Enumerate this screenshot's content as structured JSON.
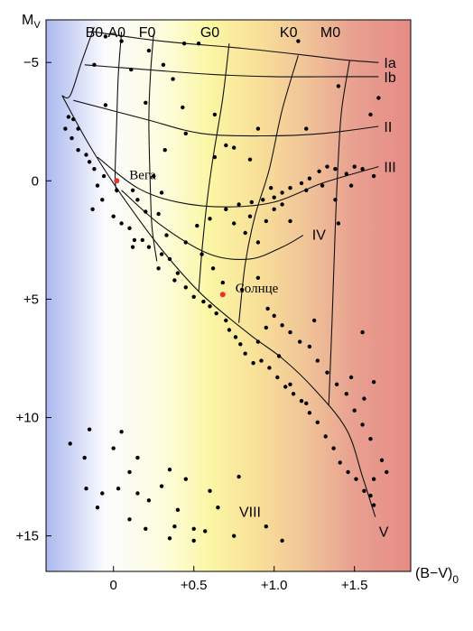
{
  "chart_data": {
    "type": "scatter",
    "ylabel": "M",
    "ylabel_subscript": "V",
    "xlabel": "(B−V)",
    "xlabel_subscript": "0",
    "xlim": [
      -0.42,
      1.85
    ],
    "ylim": [
      -6.8,
      16.5
    ],
    "y_inverted": true,
    "x_ticks": [
      {
        "value": 0,
        "label": "0"
      },
      {
        "value": 0.5,
        "label": "+0.5"
      },
      {
        "value": 1.0,
        "label": "+1.0"
      },
      {
        "value": 1.5,
        "label": "+1.5"
      }
    ],
    "y_ticks": [
      {
        "value": -5,
        "label": "−5"
      },
      {
        "value": 0,
        "label": "0"
      },
      {
        "value": 5,
        "label": "+5"
      },
      {
        "value": 10,
        "label": "+10"
      },
      {
        "value": 15,
        "label": "+15"
      }
    ],
    "background_gradient": [
      {
        "x": -0.42,
        "color": "#aab8ee"
      },
      {
        "x": -0.05,
        "color": "#fcfcff"
      },
      {
        "x": 0.3,
        "color": "#fdfde0"
      },
      {
        "x": 0.6,
        "color": "#fbf6a4"
      },
      {
        "x": 0.9,
        "color": "#f8e098"
      },
      {
        "x": 1.2,
        "color": "#f0c498"
      },
      {
        "x": 1.5,
        "color": "#e8a090"
      },
      {
        "x": 1.85,
        "color": "#e68b86"
      }
    ],
    "spectral_classes": [
      {
        "label": "B0",
        "x": -0.12
      },
      {
        "label": "A0",
        "x": 0.02
      },
      {
        "label": "F0",
        "x": 0.21
      },
      {
        "label": "G0",
        "x": 0.6
      },
      {
        "label": "K0",
        "x": 1.09
      },
      {
        "label": "M0",
        "x": 1.35
      }
    ],
    "luminosity_classes": [
      {
        "label": "Ia",
        "points": [
          [
            -0.13,
            -6.3
          ],
          [
            0.3,
            -5.9
          ],
          [
            0.8,
            -5.6
          ],
          [
            1.2,
            -5.3
          ],
          [
            1.45,
            -5.1
          ],
          [
            1.65,
            -5.0
          ]
        ]
      },
      {
        "label": "Ib",
        "points": [
          [
            -0.18,
            -4.9
          ],
          [
            0.2,
            -4.7
          ],
          [
            0.6,
            -4.5
          ],
          [
            1.0,
            -4.4
          ],
          [
            1.4,
            -4.4
          ],
          [
            1.65,
            -4.4
          ]
        ]
      },
      {
        "label": "II",
        "points": [
          [
            -0.25,
            -3.4
          ],
          [
            0.2,
            -2.6
          ],
          [
            0.55,
            -2.0
          ],
          [
            0.95,
            -1.9
          ],
          [
            1.3,
            -2.0
          ],
          [
            1.65,
            -2.3
          ]
        ]
      },
      {
        "label": "III",
        "points": [
          [
            -0.1,
            -1.0
          ],
          [
            0.15,
            0.3
          ],
          [
            0.4,
            0.9
          ],
          [
            0.7,
            1.1
          ],
          [
            1.0,
            0.9
          ],
          [
            1.3,
            0.1
          ],
          [
            1.65,
            -0.6
          ]
        ]
      },
      {
        "label": "IV",
        "points": [
          [
            0.05,
            0.4
          ],
          [
            0.3,
            1.9
          ],
          [
            0.6,
            3.1
          ],
          [
            0.85,
            3.3
          ],
          [
            1.05,
            2.8
          ],
          [
            1.18,
            2.3
          ]
        ]
      },
      {
        "label": "V",
        "points": [
          [
            -0.32,
            -3.6
          ],
          [
            -0.15,
            -1.5
          ],
          [
            0.05,
            0.6
          ],
          [
            0.3,
            2.9
          ],
          [
            0.55,
            4.8
          ],
          [
            0.85,
            6.5
          ],
          [
            1.05,
            7.5
          ],
          [
            1.25,
            8.8
          ],
          [
            1.45,
            10.5
          ],
          [
            1.55,
            12.5
          ],
          [
            1.63,
            14.2
          ]
        ]
      }
    ],
    "constant_class_lines": [
      {
        "class": "B0",
        "points": [
          [
            -0.12,
            -6.5
          ],
          [
            -0.2,
            -5.0
          ],
          [
            -0.27,
            -3.6
          ],
          [
            -0.32,
            -3.6
          ]
        ]
      },
      {
        "class": "A0",
        "points": [
          [
            0.05,
            -6.3
          ],
          [
            0.03,
            -4.5
          ],
          [
            0.02,
            -2.5
          ],
          [
            0.01,
            -0.2
          ],
          [
            0.02,
            0.5
          ]
        ]
      },
      {
        "class": "F0",
        "points": [
          [
            0.25,
            -6.2
          ],
          [
            0.23,
            -4.5
          ],
          [
            0.22,
            -2.5
          ],
          [
            0.23,
            0.5
          ],
          [
            0.24,
            2.0
          ],
          [
            0.27,
            3.4
          ]
        ]
      },
      {
        "class": "G0",
        "points": [
          [
            0.72,
            -5.8
          ],
          [
            0.68,
            -3.5
          ],
          [
            0.62,
            -1.0
          ],
          [
            0.58,
            1.0
          ],
          [
            0.55,
            3.0
          ],
          [
            0.53,
            4.7
          ]
        ]
      },
      {
        "class": "K0",
        "points": [
          [
            1.15,
            -5.3
          ],
          [
            1.05,
            -3.0
          ],
          [
            0.97,
            -0.5
          ],
          [
            0.88,
            1.5
          ],
          [
            0.82,
            3.5
          ],
          [
            0.78,
            6.0
          ]
        ]
      },
      {
        "class": "M0",
        "points": [
          [
            1.47,
            -5.1
          ],
          [
            1.42,
            -3.0
          ],
          [
            1.4,
            -1.0
          ],
          [
            1.38,
            2.0
          ],
          [
            1.36,
            6.0
          ],
          [
            1.34,
            9.5
          ]
        ]
      }
    ],
    "highlighted_stars": [
      {
        "name": "Вега",
        "x": 0.02,
        "y": 0.0,
        "color": "#e8322a"
      },
      {
        "name": "Солнце",
        "x": 0.68,
        "y": 4.8,
        "color": "#e8322a"
      }
    ],
    "luminosity_label_VIII": {
      "label": "VIII",
      "x": 0.85,
      "y": 14.2
    },
    "stars": [
      [
        -0.05,
        -6.1
      ],
      [
        0.05,
        -5.9
      ],
      [
        0.22,
        -5.5
      ],
      [
        0.44,
        -5.8
      ],
      [
        0.53,
        -5.8
      ],
      [
        1.15,
        -5.9
      ],
      [
        -0.12,
        -4.9
      ],
      [
        0.11,
        -4.7
      ],
      [
        0.31,
        -4.9
      ],
      [
        0.37,
        -4.3
      ],
      [
        1.4,
        -4.0
      ],
      [
        -0.05,
        -3.2
      ],
      [
        0.2,
        -3.3
      ],
      [
        0.43,
        -3.1
      ],
      [
        0.63,
        -2.8
      ],
      [
        1.65,
        -3.5
      ],
      [
        0.45,
        -2.0
      ],
      [
        0.9,
        -2.2
      ],
      [
        1.2,
        -2.2
      ],
      [
        1.6,
        -2.8
      ],
      [
        0.75,
        -1.4
      ],
      [
        0.32,
        -1.3
      ],
      [
        0.63,
        -1.0
      ],
      [
        0.85,
        -0.9
      ],
      [
        -0.28,
        -2.7
      ],
      [
        -0.3,
        -2.2
      ],
      [
        -0.25,
        -2.6
      ],
      [
        -0.22,
        -2.2
      ],
      [
        -0.26,
        -1.8
      ],
      [
        -0.22,
        -1.3
      ],
      [
        -0.17,
        -1.1
      ],
      [
        -0.15,
        -0.8
      ],
      [
        -0.12,
        -0.5
      ],
      [
        -0.06,
        -0.2
      ],
      [
        -0.1,
        0.2
      ],
      [
        0.02,
        0.4
      ],
      [
        0.12,
        0.4
      ],
      [
        0.15,
        0.8
      ],
      [
        0.2,
        1.3
      ],
      [
        0.28,
        1.4
      ],
      [
        -0.07,
        0.8
      ],
      [
        -0.13,
        1.2
      ],
      [
        0.0,
        1.5
      ],
      [
        0.05,
        1.8
      ],
      [
        0.1,
        2.0
      ],
      [
        0.13,
        2.5
      ],
      [
        0.18,
        2.5
      ],
      [
        0.22,
        2.8
      ],
      [
        0.12,
        2.8
      ],
      [
        0.3,
        3.1
      ],
      [
        0.35,
        3.3
      ],
      [
        0.28,
        3.7
      ],
      [
        0.4,
        3.9
      ],
      [
        0.38,
        4.2
      ],
      [
        0.45,
        4.5
      ],
      [
        0.5,
        4.9
      ],
      [
        0.56,
        5.1
      ],
      [
        0.6,
        5.3
      ],
      [
        0.64,
        5.6
      ],
      [
        0.7,
        5.9
      ],
      [
        0.72,
        6.3
      ],
      [
        0.76,
        6.6
      ],
      [
        0.79,
        6.9
      ],
      [
        0.82,
        7.3
      ],
      [
        0.87,
        7.7
      ],
      [
        0.92,
        7.6
      ],
      [
        0.97,
        7.9
      ],
      [
        1.02,
        8.3
      ],
      [
        1.07,
        8.7
      ],
      [
        1.12,
        9.0
      ],
      [
        1.17,
        9.3
      ],
      [
        1.22,
        9.8
      ],
      [
        1.27,
        10.2
      ],
      [
        1.32,
        10.8
      ],
      [
        1.37,
        11.3
      ],
      [
        1.41,
        11.9
      ],
      [
        1.46,
        12.3
      ],
      [
        1.51,
        12.6
      ],
      [
        1.56,
        13.1
      ],
      [
        1.62,
        13.7
      ],
      [
        1.67,
        11.8
      ],
      [
        1.7,
        12.3
      ],
      [
        1.6,
        10.9
      ],
      [
        1.55,
        10.3
      ],
      [
        1.5,
        9.7
      ],
      [
        1.45,
        9.0
      ],
      [
        1.39,
        8.6
      ],
      [
        1.33,
        8.1
      ],
      [
        1.27,
        7.6
      ],
      [
        1.22,
        7.0
      ],
      [
        1.16,
        6.8
      ],
      [
        1.1,
        6.4
      ],
      [
        1.05,
        6.1
      ],
      [
        1.0,
        5.7
      ],
      [
        0.96,
        5.4
      ],
      [
        1.2,
        9.4
      ],
      [
        1.1,
        8.6
      ],
      [
        1.03,
        7.4
      ],
      [
        0.9,
        6.8
      ],
      [
        0.95,
        6.2
      ],
      [
        1.25,
        5.9
      ],
      [
        1.55,
        6.4
      ],
      [
        1.62,
        8.5
      ],
      [
        1.56,
        9.2
      ],
      [
        1.48,
        8.3
      ],
      [
        0.68,
        4.3
      ],
      [
        0.8,
        4.6
      ],
      [
        0.62,
        3.7
      ],
      [
        0.9,
        4.1
      ],
      [
        0.55,
        3.1
      ],
      [
        0.45,
        2.6
      ],
      [
        0.33,
        2.3
      ],
      [
        0.52,
        1.9
      ],
      [
        0.6,
        1.6
      ],
      [
        0.7,
        1.2
      ],
      [
        0.78,
        1.0
      ],
      [
        0.86,
        0.9
      ],
      [
        0.93,
        0.8
      ],
      [
        1.0,
        0.7
      ],
      [
        1.05,
        0.5
      ],
      [
        1.1,
        0.3
      ],
      [
        1.17,
        0.1
      ],
      [
        1.22,
        -0.1
      ],
      [
        1.28,
        -0.4
      ],
      [
        1.33,
        -0.6
      ],
      [
        1.38,
        -0.5
      ],
      [
        1.45,
        -0.3
      ],
      [
        1.5,
        -0.6
      ],
      [
        1.55,
        -0.5
      ],
      [
        1.62,
        -0.2
      ],
      [
        1.0,
        1.2
      ],
      [
        0.95,
        1.7
      ],
      [
        1.05,
        1.0
      ],
      [
        0.85,
        1.5
      ],
      [
        0.82,
        2.2
      ],
      [
        1.2,
        0.4
      ],
      [
        1.3,
        0.2
      ],
      [
        1.4,
        1.8
      ],
      [
        0.75,
        1.8
      ],
      [
        0.7,
        -1.5
      ],
      [
        0.25,
        -0.2
      ],
      [
        0.3,
        0.5
      ],
      [
        1.38,
        0.8
      ],
      [
        1.48,
        0.2
      ],
      [
        0.98,
        0.3
      ],
      [
        1.1,
        1.7
      ],
      [
        0.9,
        2.6
      ],
      [
        1.62,
        12.6
      ],
      [
        1.6,
        13.3
      ],
      [
        -0.15,
        10.5
      ],
      [
        -0.27,
        11.1
      ],
      [
        -0.18,
        11.7
      ],
      [
        0.05,
        10.6
      ],
      [
        0.0,
        11.3
      ],
      [
        0.15,
        11.7
      ],
      [
        -0.17,
        13.0
      ],
      [
        0.1,
        12.3
      ],
      [
        0.35,
        12.2
      ],
      [
        0.45,
        12.6
      ],
      [
        -0.07,
        13.2
      ],
      [
        0.03,
        13.0
      ],
      [
        0.15,
        13.2
      ],
      [
        0.3,
        12.9
      ],
      [
        0.6,
        13.1
      ],
      [
        0.78,
        12.5
      ],
      [
        -0.1,
        13.8
      ],
      [
        0.22,
        13.5
      ],
      [
        0.4,
        13.9
      ],
      [
        0.65,
        13.8
      ],
      [
        0.1,
        14.3
      ],
      [
        0.38,
        14.6
      ],
      [
        0.5,
        14.7
      ],
      [
        0.2,
        14.7
      ],
      [
        0.35,
        15.1
      ],
      [
        0.57,
        14.8
      ],
      [
        0.95,
        14.6
      ],
      [
        0.75,
        15.0
      ],
      [
        0.5,
        15.2
      ],
      [
        1.05,
        15.2
      ]
    ]
  }
}
